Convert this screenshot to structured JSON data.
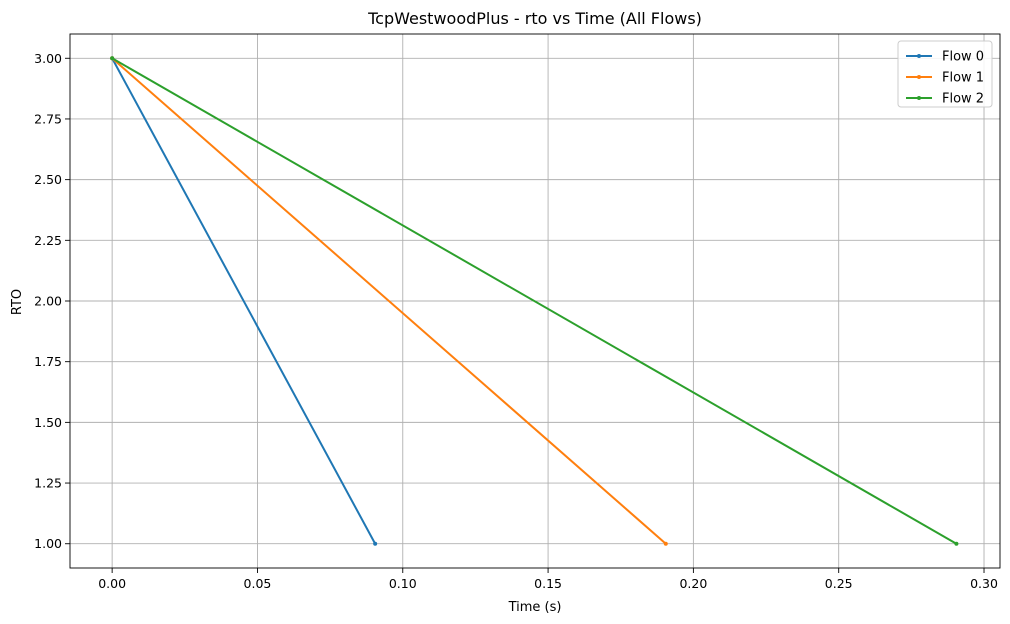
{
  "chart_data": {
    "type": "line",
    "title": "TcpWestwoodPlus - rto vs Time (All Flows)",
    "xlabel": "Time (s)",
    "ylabel": "RTO",
    "xlim": [
      -0.0145,
      0.3055
    ],
    "ylim": [
      0.9,
      3.1
    ],
    "xticks": [
      0.0,
      0.05,
      0.1,
      0.15,
      0.2,
      0.25,
      0.3
    ],
    "xtick_labels": [
      "0.00",
      "0.05",
      "0.10",
      "0.15",
      "0.20",
      "0.25",
      "0.30"
    ],
    "yticks": [
      1.0,
      1.25,
      1.5,
      1.75,
      2.0,
      2.25,
      2.5,
      2.75,
      3.0
    ],
    "ytick_labels": [
      "1.00",
      "1.25",
      "1.50",
      "1.75",
      "2.00",
      "2.25",
      "2.50",
      "2.75",
      "3.00"
    ],
    "grid": true,
    "legend_position": "top-right",
    "series": [
      {
        "name": "Flow 0",
        "color": "#1f77b4",
        "x": [
          0.0,
          0.0905
        ],
        "y": [
          3.0,
          1.0
        ]
      },
      {
        "name": "Flow 1",
        "color": "#ff7f0e",
        "x": [
          0.0,
          0.1905
        ],
        "y": [
          3.0,
          1.0
        ]
      },
      {
        "name": "Flow 2",
        "color": "#2ca02c",
        "x": [
          0.0,
          0.2905
        ],
        "y": [
          3.0,
          1.0
        ]
      }
    ]
  }
}
